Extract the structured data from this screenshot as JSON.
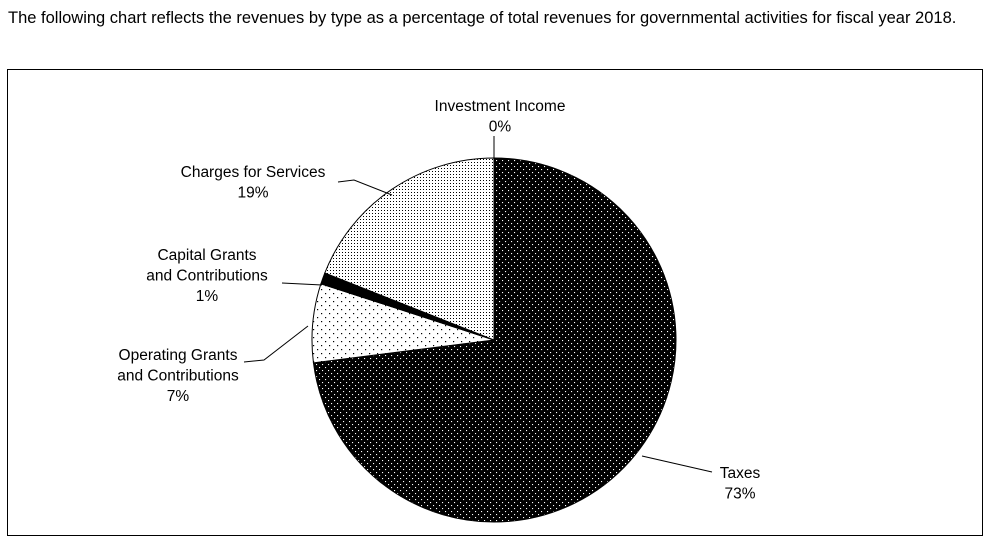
{
  "intro_text": "The following chart reflects the revenues by type as a percentage of total revenues for governmental activities for fiscal year 2018.",
  "chart_data": {
    "type": "pie",
    "title": "",
    "start_angle_deg": 0,
    "direction": "clockwise",
    "slices": [
      {
        "key": "taxes",
        "label_lines": [
          "Taxes"
        ],
        "value_label": "73%",
        "value": 73,
        "pattern": "dark"
      },
      {
        "key": "operating",
        "label_lines": [
          "Operating Grants",
          "and Contributions"
        ],
        "value_label": "7%",
        "value": 7,
        "pattern": "sparse"
      },
      {
        "key": "capital",
        "label_lines": [
          "Capital Grants",
          "and Contributions"
        ],
        "value_label": "1%",
        "value": 1,
        "pattern": "black"
      },
      {
        "key": "charges",
        "label_lines": [
          "Charges for Services"
        ],
        "value_label": "19%",
        "value": 19,
        "pattern": "dense"
      },
      {
        "key": "investment",
        "label_lines": [
          "Investment Income"
        ],
        "value_label": "0%",
        "value": 0,
        "pattern": "none"
      }
    ]
  }
}
